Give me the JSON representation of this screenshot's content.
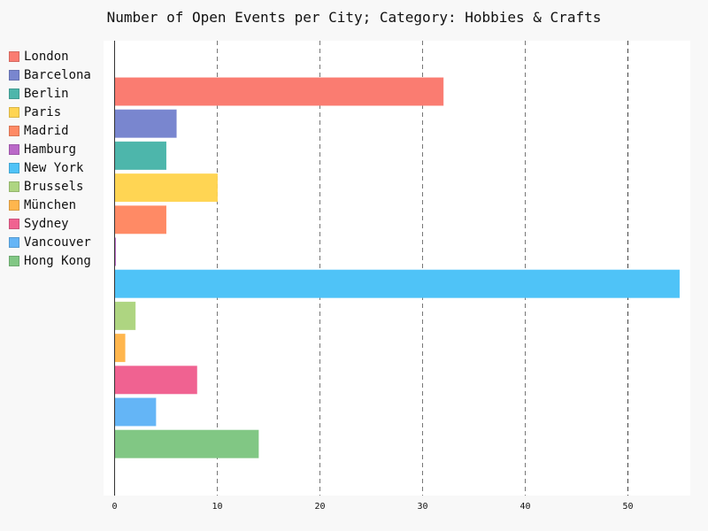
{
  "chart_data": {
    "type": "bar",
    "orientation": "horizontal",
    "title": "Number of Open Events per City; Category: Hobbies & Crafts",
    "xlabel": "",
    "ylabel": "",
    "xlim": [
      0,
      55
    ],
    "x_ticks": [
      0,
      10,
      20,
      30,
      40,
      50
    ],
    "grid": "vertical dashed",
    "legend_placement": "left",
    "series": [
      {
        "name": "London",
        "value": 32,
        "color": "#fa7c71"
      },
      {
        "name": "Barcelona",
        "value": 6,
        "color": "#7986cf"
      },
      {
        "name": "Berlin",
        "value": 5,
        "color": "#4db6ab"
      },
      {
        "name": "Paris",
        "value": 10,
        "color": "#ffd553"
      },
      {
        "name": "Madrid",
        "value": 5,
        "color": "#ff8a65"
      },
      {
        "name": "Hamburg",
        "value": 0,
        "color": "#ba68c8"
      },
      {
        "name": "New York",
        "value": 55,
        "color": "#4fc3f7"
      },
      {
        "name": "Brussels",
        "value": 2,
        "color": "#aed581"
      },
      {
        "name": "München",
        "value": 1,
        "color": "#ffb64d"
      },
      {
        "name": "Sydney",
        "value": 8,
        "color": "#f06291"
      },
      {
        "name": "Vancouver",
        "value": 4,
        "color": "#64b5f6"
      },
      {
        "name": "Hong Kong",
        "value": 14,
        "color": "#81c784"
      }
    ]
  }
}
